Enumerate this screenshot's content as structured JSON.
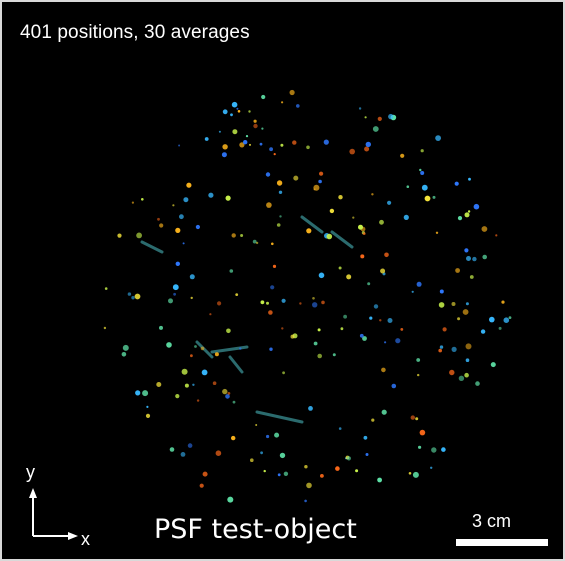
{
  "image": {
    "header_text": "401 positions, 30 averages",
    "title": "PSF test-object",
    "scale_bar_label": "3 cm",
    "axis_y_label": "y",
    "axis_x_label": "x",
    "background_color": "#000000",
    "point_colors": [
      "#ff6a1a",
      "#ffb61c",
      "#f4e33a",
      "#c6f04a",
      "#5fe3a8",
      "#37b9ff",
      "#2f78ff"
    ]
  }
}
